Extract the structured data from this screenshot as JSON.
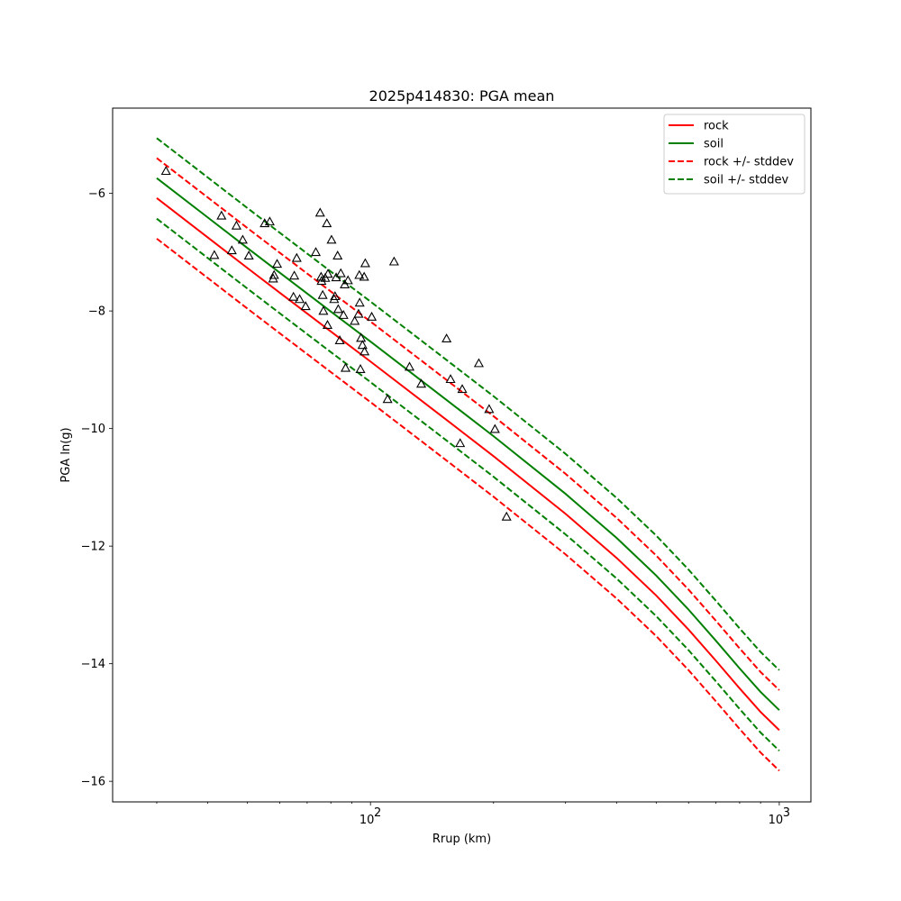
{
  "chart_data": {
    "type": "line",
    "title": "2025p414830: PGA mean",
    "xlabel": "Rrup (km)",
    "ylabel": "PGA ln(g)",
    "x_scale": "log",
    "xlim": [
      23.4,
      1195
    ],
    "ylim": [
      -16.35,
      -4.55
    ],
    "x_ticks": [
      {
        "value": 100,
        "base": "10",
        "exp": "2"
      },
      {
        "value": 1000,
        "base": "10",
        "exp": "3"
      }
    ],
    "x_minor_ticks": [
      30,
      40,
      50,
      60,
      70,
      80,
      90,
      200,
      300,
      400,
      500,
      600,
      700,
      800,
      900
    ],
    "y_ticks": [
      {
        "value": -16,
        "label": "−16"
      },
      {
        "value": -14,
        "label": "−14"
      },
      {
        "value": -12,
        "label": "−12"
      },
      {
        "value": -10,
        "label": "−10"
      },
      {
        "value": -8,
        "label": "−8"
      },
      {
        "value": -6,
        "label": "−6"
      }
    ],
    "grid": false,
    "legend_position": "top-right",
    "x": [
      30,
      40,
      50,
      60,
      80,
      100,
      150,
      200,
      300,
      400,
      500,
      600,
      700,
      800,
      900,
      1000
    ],
    "series": [
      {
        "name": "rock",
        "color": "#ff0000",
        "dash": false,
        "legend": true,
        "values": [
          -6.08,
          -6.75,
          -7.27,
          -7.69,
          -8.35,
          -8.86,
          -9.8,
          -10.47,
          -11.45,
          -12.2,
          -12.84,
          -13.42,
          -13.95,
          -14.42,
          -14.82,
          -15.13
        ]
      },
      {
        "name": "soil",
        "color": "#008000",
        "dash": false,
        "legend": true,
        "values": [
          -5.74,
          -6.41,
          -6.93,
          -7.35,
          -8.01,
          -8.52,
          -9.46,
          -10.13,
          -11.11,
          -11.86,
          -12.5,
          -13.08,
          -13.61,
          -14.08,
          -14.48,
          -14.79
        ]
      },
      {
        "name": "rock +/- stddev",
        "color": "#ff0000",
        "dash": true,
        "legend": true,
        "values": [
          -5.4,
          -6.07,
          -6.59,
          -7.01,
          -7.67,
          -8.18,
          -9.12,
          -9.79,
          -10.77,
          -11.52,
          -12.16,
          -12.74,
          -13.27,
          -13.74,
          -14.14,
          -14.45
        ]
      },
      {
        "name": "",
        "color": "#ff0000",
        "dash": true,
        "legend": false,
        "values": [
          -6.77,
          -7.44,
          -7.96,
          -8.38,
          -9.04,
          -9.55,
          -10.49,
          -11.16,
          -12.14,
          -12.89,
          -13.53,
          -14.11,
          -14.64,
          -15.11,
          -15.51,
          -15.82
        ]
      },
      {
        "name": "soil +/- stddev",
        "color": "#008000",
        "dash": true,
        "legend": true,
        "values": [
          -5.06,
          -5.73,
          -6.25,
          -6.67,
          -7.33,
          -7.84,
          -8.78,
          -9.45,
          -10.43,
          -11.18,
          -11.82,
          -12.4,
          -12.93,
          -13.4,
          -13.8,
          -14.11
        ]
      },
      {
        "name": "",
        "color": "#008000",
        "dash": true,
        "legend": false,
        "values": [
          -6.43,
          -7.1,
          -7.62,
          -8.04,
          -8.7,
          -9.21,
          -10.15,
          -10.82,
          -11.8,
          -12.55,
          -13.19,
          -13.77,
          -14.3,
          -14.77,
          -15.17,
          -15.48
        ]
      }
    ],
    "observations": {
      "marker": "triangle",
      "color": "#000000",
      "points": [
        [
          31.6,
          -5.62
        ],
        [
          41.5,
          -7.05
        ],
        [
          43.2,
          -6.38
        ],
        [
          45.8,
          -6.97
        ],
        [
          47.0,
          -6.55
        ],
        [
          48.7,
          -6.79
        ],
        [
          50.4,
          -7.06
        ],
        [
          55.1,
          -6.51
        ],
        [
          56.7,
          -6.48
        ],
        [
          57.8,
          -7.45
        ],
        [
          58.1,
          -7.39
        ],
        [
          59.1,
          -7.2
        ],
        [
          64.8,
          -7.76
        ],
        [
          65.1,
          -7.4
        ],
        [
          66.0,
          -7.1
        ],
        [
          67.1,
          -7.8
        ],
        [
          69.4,
          -7.92
        ],
        [
          73.5,
          -7.0
        ],
        [
          75.3,
          -6.33
        ],
        [
          75.7,
          -7.42
        ],
        [
          75.9,
          -7.49
        ],
        [
          76.4,
          -7.73
        ],
        [
          76.7,
          -8.0
        ],
        [
          77.5,
          -7.44
        ],
        [
          78.2,
          -6.51
        ],
        [
          78.5,
          -8.24
        ],
        [
          78.7,
          -7.37
        ],
        [
          80.3,
          -6.79
        ],
        [
          81.5,
          -7.8
        ],
        [
          81.9,
          -7.75
        ],
        [
          82.4,
          -7.43
        ],
        [
          83.1,
          -7.06
        ],
        [
          83.4,
          -7.97
        ],
        [
          84.1,
          -8.5
        ],
        [
          84.6,
          -7.36
        ],
        [
          85.9,
          -8.07
        ],
        [
          86.5,
          -7.55
        ],
        [
          86.9,
          -8.97
        ],
        [
          88.1,
          -7.48
        ],
        [
          91.5,
          -8.17
        ],
        [
          93.5,
          -8.05
        ],
        [
          93.9,
          -7.39
        ],
        [
          94.1,
          -7.86
        ],
        [
          94.5,
          -8.99
        ],
        [
          94.8,
          -8.46
        ],
        [
          95.6,
          -8.58
        ],
        [
          96.5,
          -7.42
        ],
        [
          96.7,
          -8.69
        ],
        [
          97.1,
          -7.19
        ],
        [
          100.7,
          -8.1
        ],
        [
          110.1,
          -9.5
        ],
        [
          114.2,
          -7.16
        ],
        [
          124.6,
          -8.95
        ],
        [
          133.1,
          -9.24
        ],
        [
          153.5,
          -8.47
        ],
        [
          157.0,
          -9.16
        ],
        [
          165.7,
          -10.25
        ],
        [
          167.7,
          -9.33
        ],
        [
          184.1,
          -8.89
        ],
        [
          195.1,
          -9.67
        ],
        [
          201.6,
          -10.01
        ],
        [
          215.2,
          -11.5
        ]
      ]
    }
  }
}
